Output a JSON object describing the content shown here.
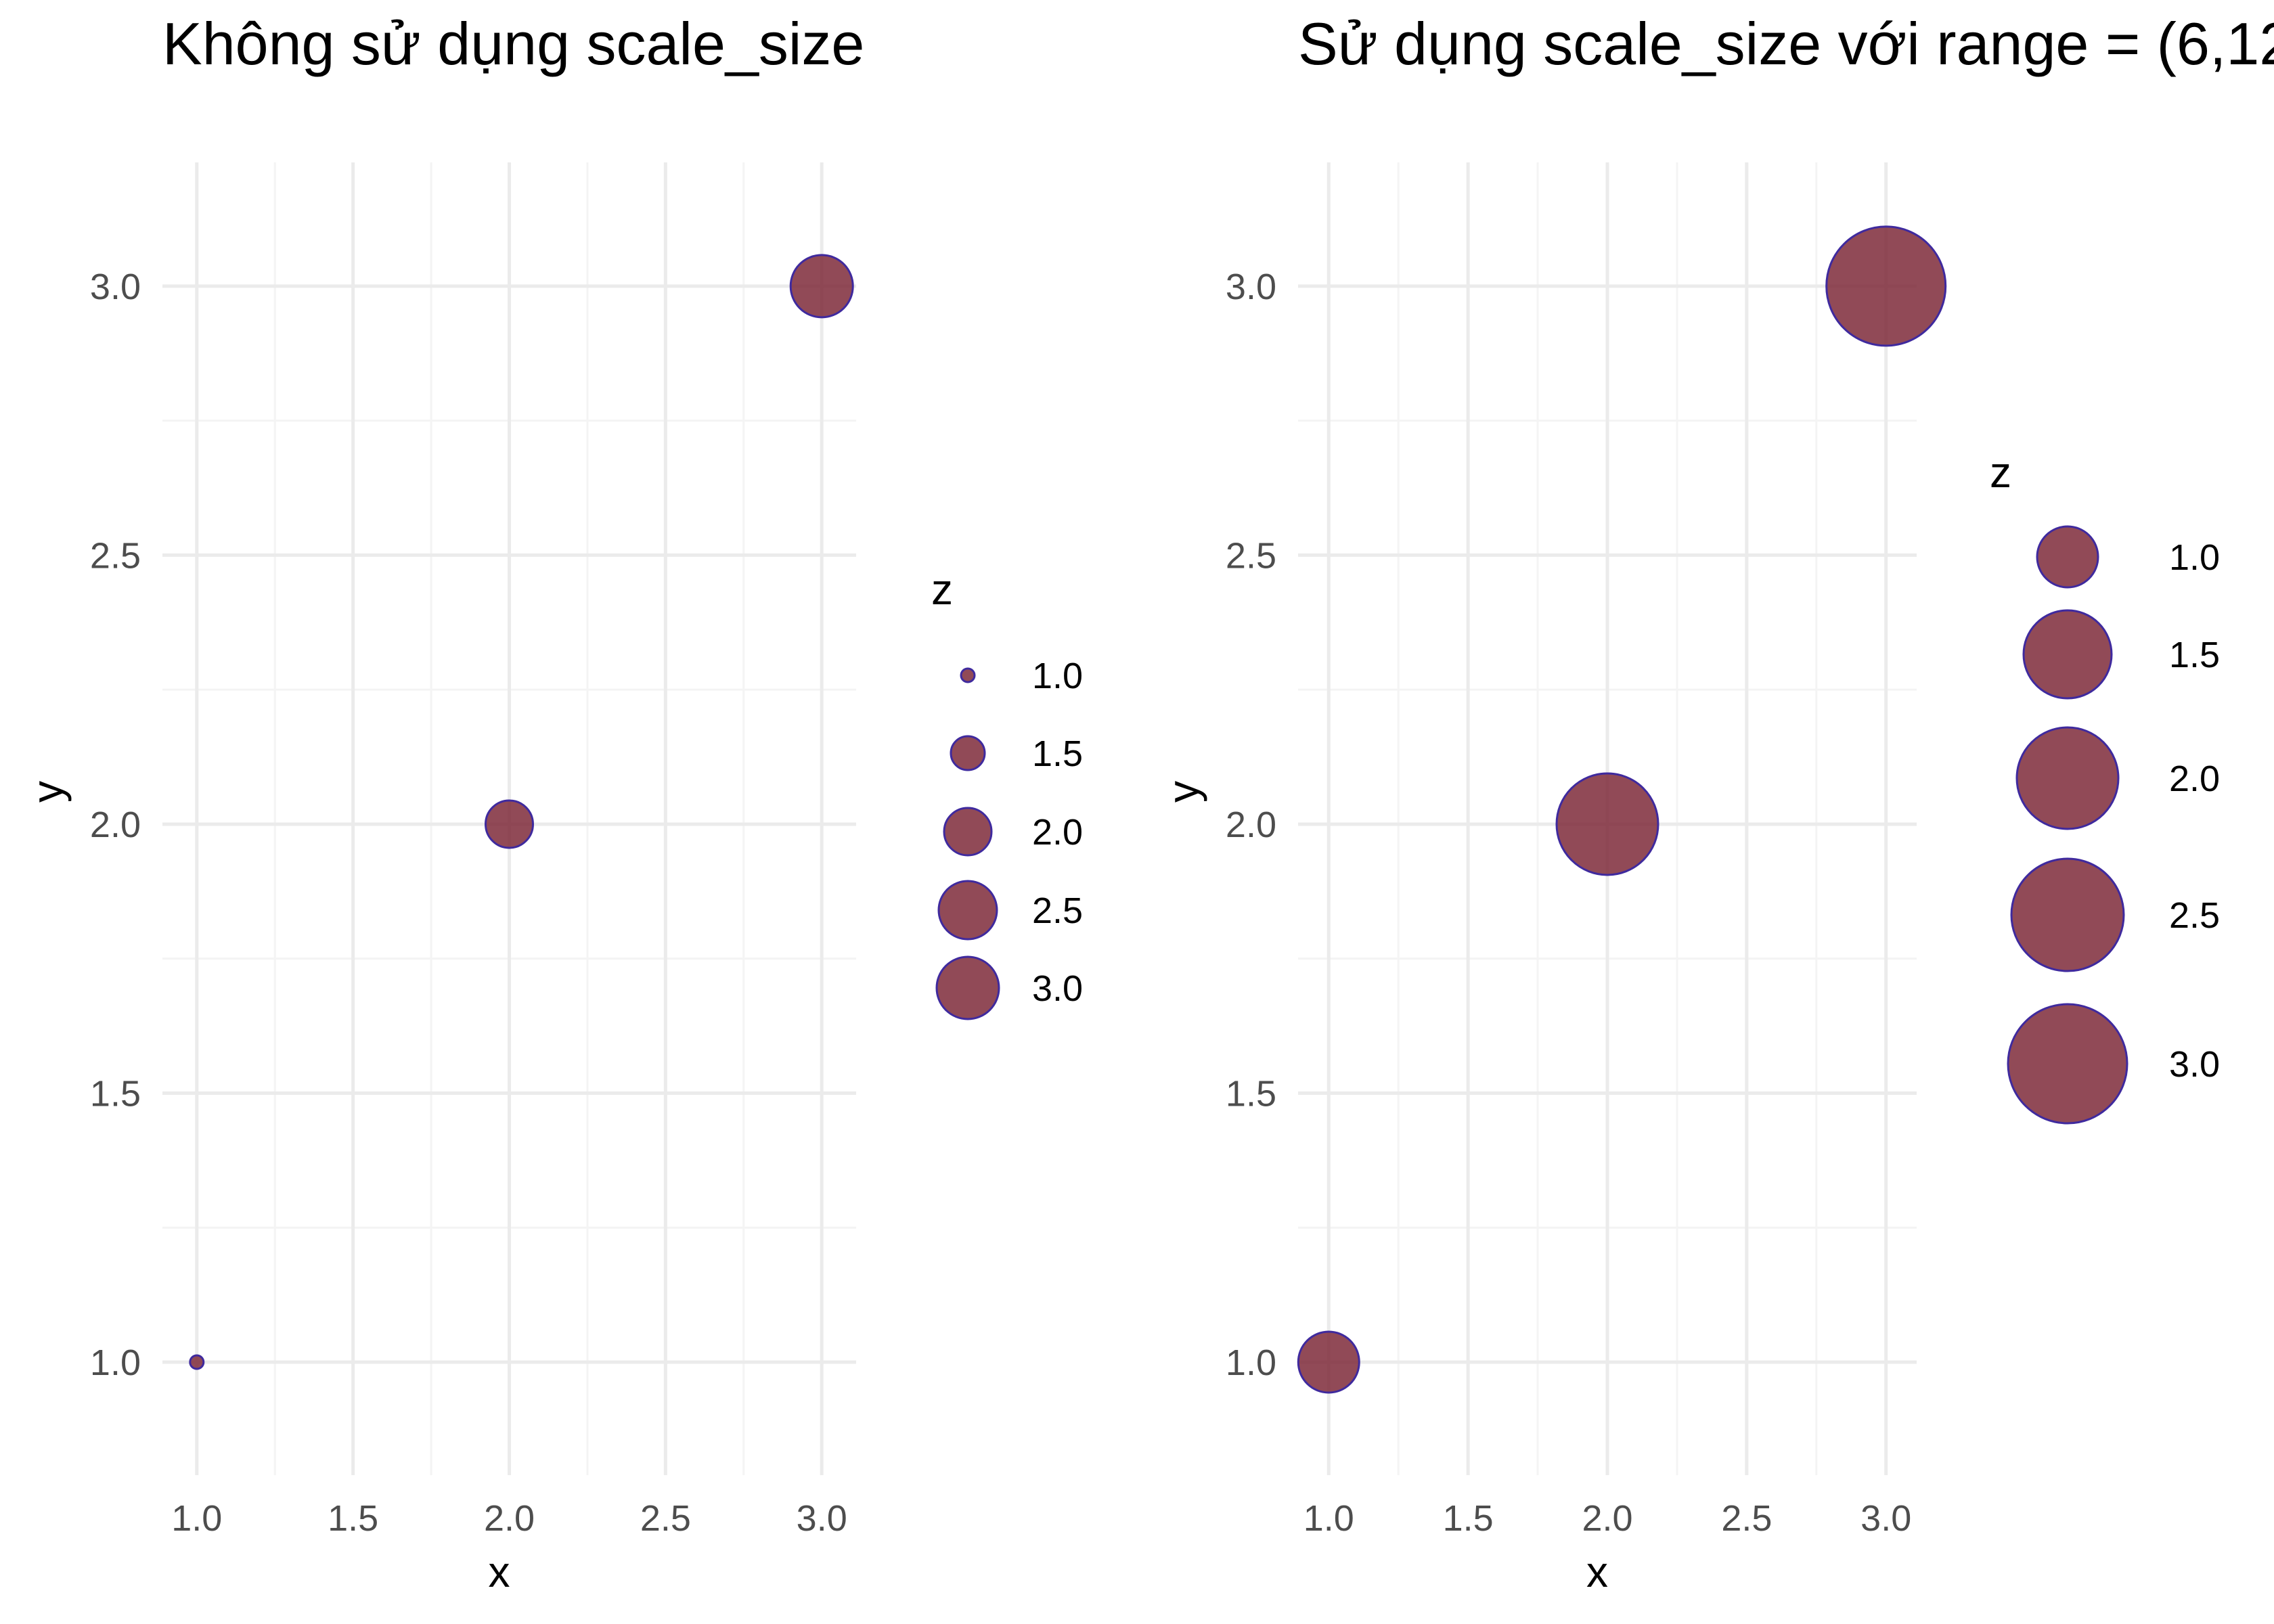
{
  "colors": {
    "point_fill": "#7e2a3a",
    "point_stroke": "#3f2a9e",
    "grid_major": "#ebebeb",
    "grid_minor": "#f4f4f4"
  },
  "chart_data": [
    {
      "type": "scatter",
      "title": "Không sử dụng scale_size",
      "xlabel": "x",
      "ylabel": "y",
      "xlim": [
        0.89,
        3.11
      ],
      "ylim": [
        0.79,
        3.23
      ],
      "x_ticks": [
        "1.0",
        "1.5",
        "2.0",
        "2.5",
        "3.0"
      ],
      "y_ticks": [
        "1.0",
        "1.5",
        "2.0",
        "2.5",
        "3.0"
      ],
      "points": [
        {
          "x": 1,
          "y": 1,
          "z": 1
        },
        {
          "x": 2,
          "y": 2,
          "z": 2
        },
        {
          "x": 3,
          "y": 3,
          "z": 3
        }
      ],
      "size_scale": "default",
      "legend": {
        "title": "z",
        "position": "right",
        "labels": [
          "1.0",
          "1.5",
          "2.0",
          "2.5",
          "3.0"
        ],
        "values": [
          1.0,
          1.5,
          2.0,
          2.5,
          3.0
        ]
      },
      "grid": true
    },
    {
      "type": "scatter",
      "title": "Sử dụng scale_size với range = (6,12",
      "xlabel": "x",
      "ylabel": "y",
      "xlim": [
        0.89,
        3.11
      ],
      "ylim": [
        0.79,
        3.23
      ],
      "x_ticks": [
        "1.0",
        "1.5",
        "2.0",
        "2.5",
        "3.0"
      ],
      "y_ticks": [
        "1.0",
        "1.5",
        "2.0",
        "2.5",
        "3.0"
      ],
      "points": [
        {
          "x": 1,
          "y": 1,
          "z": 1
        },
        {
          "x": 2,
          "y": 2,
          "z": 2
        },
        {
          "x": 3,
          "y": 3,
          "z": 3
        }
      ],
      "size_scale": {
        "range": [
          6,
          12
        ]
      },
      "legend": {
        "title": "z",
        "position": "right",
        "labels": [
          "1.0",
          "1.5",
          "2.0",
          "2.5",
          "3.0"
        ],
        "values": [
          1.0,
          1.5,
          2.0,
          2.5,
          3.0
        ]
      },
      "grid": true
    }
  ]
}
